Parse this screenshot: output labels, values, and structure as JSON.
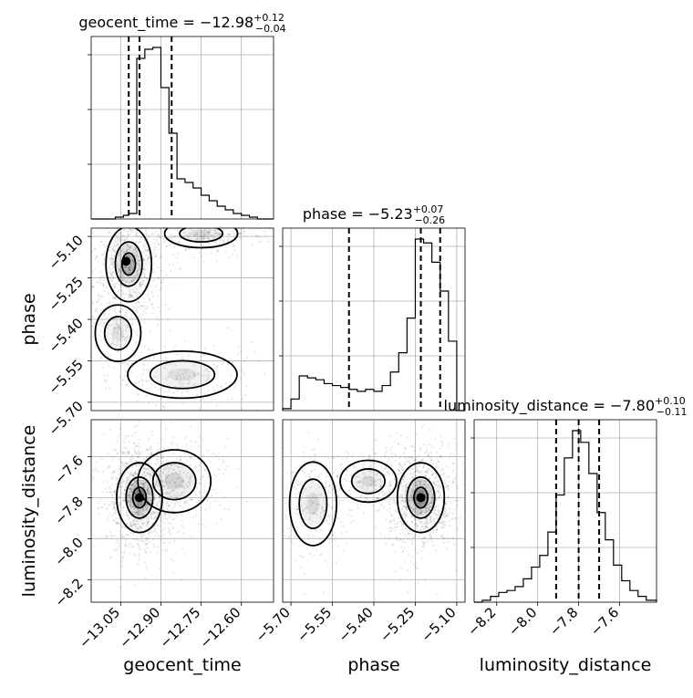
{
  "chart_data": {
    "type": "corner",
    "grid": true,
    "parameters": [
      {
        "name": "geocent_time",
        "label": "geocent_time",
        "title": "geocent_time = −12.98",
        "median": -12.98,
        "upper_err": "+0.12",
        "lower_err": "−0.04",
        "quantiles": [
          -13.02,
          -12.98,
          -12.86
        ],
        "range": [
          -13.16,
          -12.48
        ],
        "ticks": [
          -13.05,
          -12.9,
          -12.75,
          -12.6
        ],
        "tick_labels": [
          "−13.05",
          "−12.90",
          "−12.75",
          "−12.60"
        ]
      },
      {
        "name": "phase",
        "label": "phase",
        "title": "phase = −5.23",
        "median": -5.23,
        "upper_err": "+0.07",
        "lower_err": "−0.26",
        "quantiles": [
          -5.49,
          -5.23,
          -5.16
        ],
        "range": [
          -5.73,
          -5.07
        ],
        "ticks": [
          -5.7,
          -5.55,
          -5.4,
          -5.25,
          -5.1
        ],
        "tick_labels": [
          "−5.70",
          "−5.55",
          "−5.40",
          "−5.25",
          "−5.10"
        ]
      },
      {
        "name": "luminosity_distance",
        "label": "luminosity_distance",
        "title": "luminosity_distance = −7.80",
        "median": -7.8,
        "upper_err": "+0.10",
        "lower_err": "−0.11",
        "quantiles": [
          -7.91,
          -7.8,
          -7.7
        ],
        "range": [
          -8.31,
          -7.42
        ],
        "ticks": [
          -8.2,
          -8.0,
          -7.8,
          -7.6
        ],
        "tick_labels": [
          "−8.2",
          "−8.0",
          "−7.8",
          "−7.6"
        ]
      }
    ],
    "marginal_histograms": [
      {
        "param": "geocent_time",
        "bin_edges": [
          -13.16,
          -13.13,
          -13.1,
          -13.07,
          -13.04,
          -13.02,
          -12.99,
          -12.96,
          -12.93,
          -12.9,
          -12.87,
          -12.84,
          -12.81,
          -12.78,
          -12.75,
          -12.72,
          -12.69,
          -12.66,
          -12.63,
          -12.6,
          -12.57,
          -12.54,
          -12.51,
          -12.48
        ],
        "counts": [
          0,
          0,
          0,
          0.01,
          0.02,
          0.03,
          0.88,
          0.93,
          0.94,
          0.72,
          0.47,
          0.22,
          0.2,
          0.17,
          0.13,
          0.1,
          0.07,
          0.05,
          0.03,
          0.02,
          0.01,
          0,
          0
        ]
      },
      {
        "param": "phase",
        "bin_edges": [
          -5.73,
          -5.7,
          -5.67,
          -5.64,
          -5.61,
          -5.58,
          -5.55,
          -5.52,
          -5.49,
          -5.46,
          -5.43,
          -5.4,
          -5.37,
          -5.34,
          -5.31,
          -5.28,
          -5.25,
          -5.22,
          -5.19,
          -5.16,
          -5.13,
          -5.1,
          -5.07
        ],
        "counts": [
          0.01,
          0.06,
          0.18,
          0.17,
          0.16,
          0.14,
          0.13,
          0.12,
          0.11,
          0.1,
          0.11,
          0.1,
          0.13,
          0.2,
          0.3,
          0.48,
          0.89,
          0.87,
          0.77,
          0.62,
          0.36,
          0.0
        ]
      },
      {
        "param": "luminosity_distance",
        "bin_edges": [
          -8.31,
          -8.27,
          -8.23,
          -8.19,
          -8.15,
          -8.11,
          -8.07,
          -8.03,
          -7.99,
          -7.95,
          -7.91,
          -7.87,
          -7.83,
          -7.79,
          -7.75,
          -7.71,
          -7.67,
          -7.63,
          -7.59,
          -7.55,
          -7.51,
          -7.47,
          -7.42
        ],
        "counts": [
          0,
          0.01,
          0.03,
          0.05,
          0.06,
          0.08,
          0.12,
          0.18,
          0.24,
          0.36,
          0.55,
          0.74,
          0.88,
          0.82,
          0.66,
          0.46,
          0.32,
          0.19,
          0.11,
          0.06,
          0.03,
          0.01
        ]
      }
    ],
    "joint_densities": [
      {
        "x_param": "geocent_time",
        "y_param": "phase",
        "modes": [
          {
            "x": -13.02,
            "y": -5.2,
            "sx": 0.05,
            "sy": 0.08,
            "w": 0.7
          },
          {
            "x": -12.75,
            "y": -5.09,
            "sx": 0.08,
            "sy": 0.03,
            "w": 0.25
          },
          {
            "x": -12.82,
            "y": -5.6,
            "sx": 0.12,
            "sy": 0.05,
            "w": 0.2
          },
          {
            "x": -13.06,
            "y": -5.45,
            "sx": 0.05,
            "sy": 0.06,
            "w": 0.15
          }
        ],
        "peak": {
          "x": -13.03,
          "y": -5.19
        }
      },
      {
        "x_param": "geocent_time",
        "y_param": "luminosity_distance",
        "modes": [
          {
            "x": -12.98,
            "y": -7.8,
            "sx": 0.05,
            "sy": 0.1,
            "w": 1.0
          },
          {
            "x": -12.85,
            "y": -7.72,
            "sx": 0.08,
            "sy": 0.09,
            "w": 0.3
          }
        ],
        "peak": {
          "x": -12.98,
          "y": -7.8
        }
      },
      {
        "x_param": "phase",
        "y_param": "luminosity_distance",
        "modes": [
          {
            "x": -5.23,
            "y": -7.8,
            "sx": 0.05,
            "sy": 0.1,
            "w": 1.0
          },
          {
            "x": -5.42,
            "y": -7.72,
            "sx": 0.06,
            "sy": 0.06,
            "w": 0.25
          },
          {
            "x": -5.62,
            "y": -7.83,
            "sx": 0.05,
            "sy": 0.12,
            "w": 0.25
          }
        ],
        "peak": {
          "x": -5.23,
          "y": -7.8
        }
      }
    ]
  }
}
